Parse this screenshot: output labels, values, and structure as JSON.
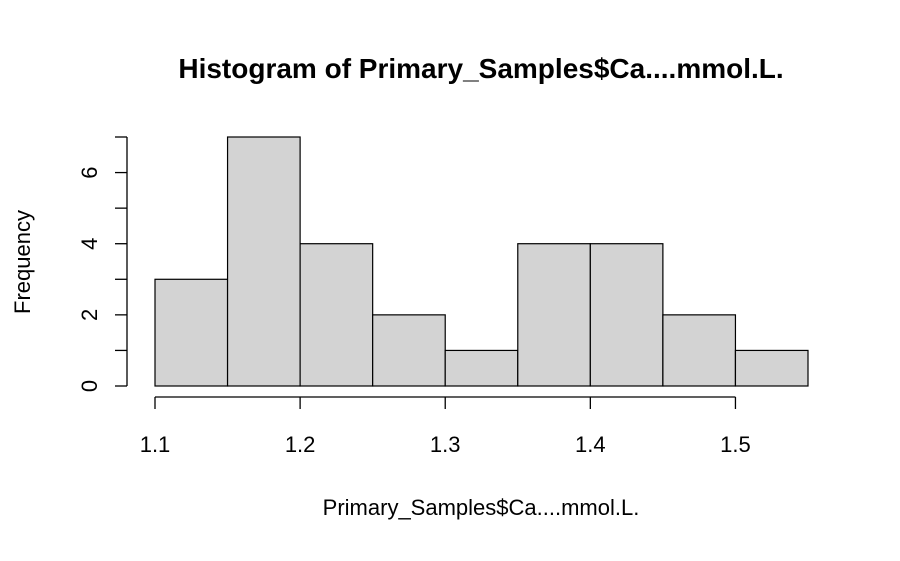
{
  "chart_data": {
    "type": "bar",
    "title": "Histogram of Primary_Samples$Ca....mmol.L.",
    "xlabel": "Primary_Samples$Ca....mmol.L.",
    "ylabel": "Frequency",
    "bin_edges": [
      1.1,
      1.15,
      1.2,
      1.25,
      1.3,
      1.35,
      1.4,
      1.45,
      1.5,
      1.55
    ],
    "values": [
      3,
      7,
      4,
      2,
      1,
      4,
      4,
      2,
      1
    ],
    "xlim": [
      1.1,
      1.55
    ],
    "ylim": [
      0,
      7
    ],
    "x_ticks": [
      1.1,
      1.2,
      1.3,
      1.4,
      1.5
    ],
    "x_tick_labels": [
      "1.1",
      "1.2",
      "1.3",
      "1.4",
      "1.5"
    ],
    "y_ticks": [
      0,
      2,
      4,
      6
    ],
    "y_tick_labels": [
      "0",
      "2",
      "4",
      "6"
    ],
    "y_minor_ticks": [
      1,
      3,
      5,
      7
    ],
    "grid": false,
    "bar_fill": "#d3d3d3",
    "bar_stroke": "#000000"
  }
}
